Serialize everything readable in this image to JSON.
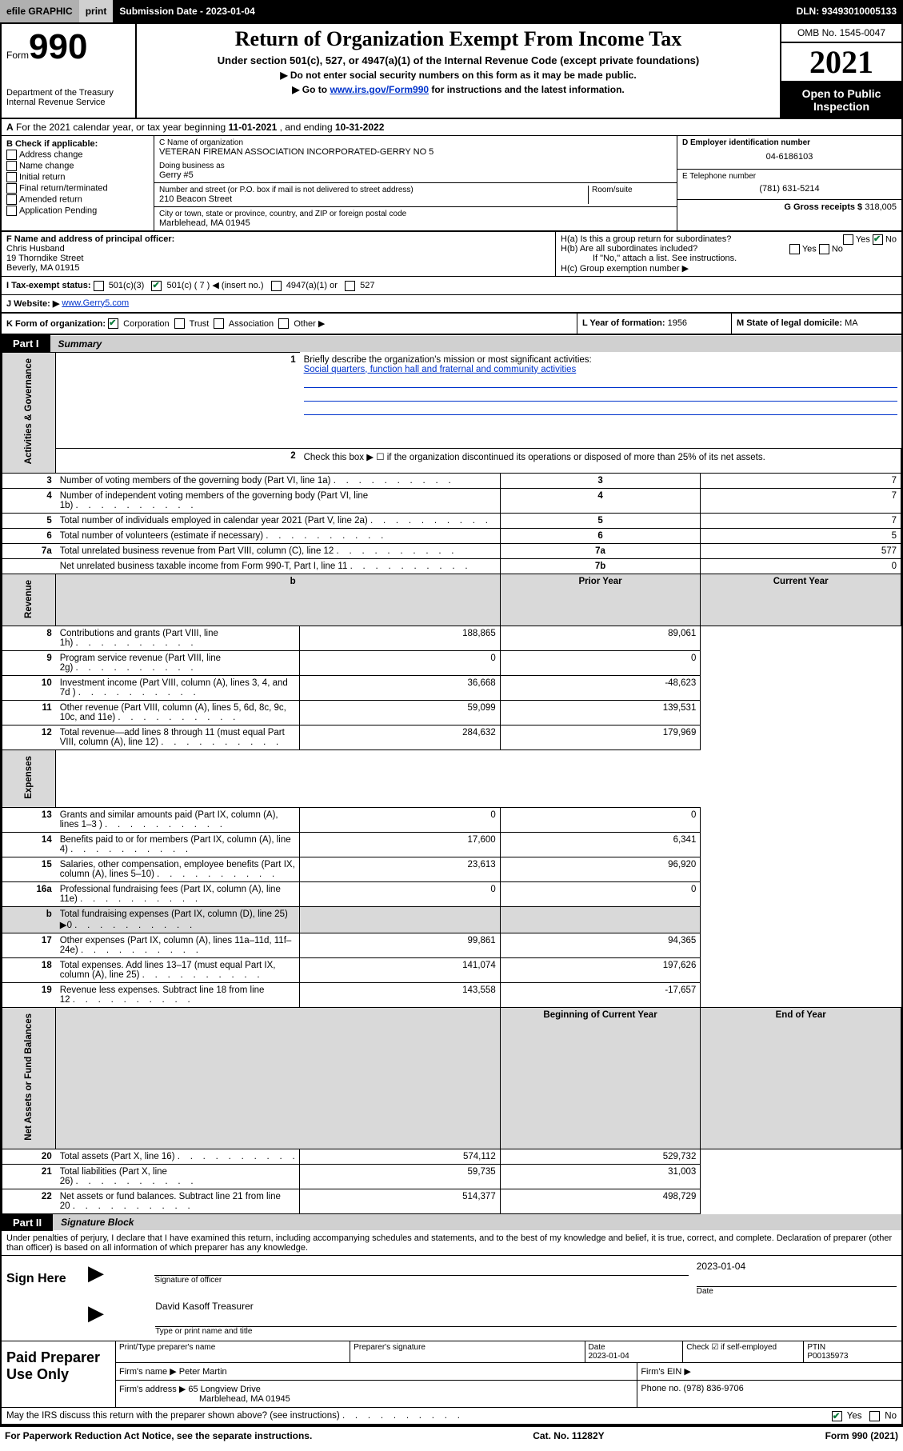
{
  "topbar": {
    "efile": "efile GRAPHIC",
    "print": "print",
    "submission": "Submission Date - 2023-01-04",
    "dln": "DLN: 93493010005133"
  },
  "header": {
    "form_word": "Form",
    "form_num": "990",
    "dept": "Department of the Treasury\nInternal Revenue Service",
    "title": "Return of Organization Exempt From Income Tax",
    "sub1": "Under section 501(c), 527, or 4947(a)(1) of the Internal Revenue Code (except private foundations)",
    "sub2": "▶ Do not enter social security numbers on this form as it may be made public.",
    "sub3_pre": "▶ Go to ",
    "sub3_link": "www.irs.gov/Form990",
    "sub3_post": " for instructions and the latest information.",
    "omb": "OMB No. 1545-0047",
    "year": "2021",
    "open": "Open to Public Inspection"
  },
  "section_a": {
    "text_pre": "For the 2021 calendar year, or tax year beginning ",
    "begin": "11-01-2021",
    "mid": " , and ending ",
    "end": "10-31-2022"
  },
  "b_checks": {
    "label": "B Check if applicable:",
    "items": [
      "Address change",
      "Name change",
      "Initial return",
      "Final return/terminated",
      "Amended return",
      "Application Pending"
    ]
  },
  "c": {
    "name_label": "C Name of organization",
    "name": "VETERAN FIREMAN ASSOCIATION INCORPORATED-GERRY NO 5",
    "dba_label": "Doing business as",
    "dba": "Gerry #5",
    "street_label": "Number and street (or P.O. box if mail is not delivered to street address)",
    "room_label": "Room/suite",
    "street": "210 Beacon Street",
    "city_label": "City or town, state or province, country, and ZIP or foreign postal code",
    "city": "Marblehead, MA  01945"
  },
  "d": {
    "label": "D Employer identification number",
    "value": "04-6186103"
  },
  "e": {
    "label": "E Telephone number",
    "value": "(781) 631-5214"
  },
  "g": {
    "label": "G Gross receipts $",
    "value": "318,005"
  },
  "f": {
    "label": "F Name and address of principal officer:",
    "name": "Chris Husband",
    "street": "19 Thorndike Street",
    "city": "Beverly, MA  01915"
  },
  "h": {
    "a": "H(a)  Is this a group return for subordinates?",
    "b": "H(b)  Are all subordinates included?",
    "b_note": "If \"No,\" attach a list. See instructions.",
    "c": "H(c)  Group exemption number ▶",
    "yes": "Yes",
    "no": "No"
  },
  "i": {
    "label": "I    Tax-exempt status:",
    "opts": [
      "501(c)(3)",
      "501(c) ( 7 ) ◀ (insert no.)",
      "4947(a)(1) or",
      "527"
    ]
  },
  "j": {
    "label": "J    Website: ▶",
    "value": "www.Gerry5.com"
  },
  "k": {
    "label": "K Form of organization:",
    "opts": [
      "Corporation",
      "Trust",
      "Association",
      "Other ▶"
    ]
  },
  "l": {
    "label": "L Year of formation:",
    "value": "1956"
  },
  "m": {
    "label": "M State of legal domicile:",
    "value": "MA"
  },
  "part1": {
    "label": "Part I",
    "title": "Summary"
  },
  "summary": {
    "q1": "Briefly describe the organization's mission or most significant activities:",
    "mission": "Social quarters, function hall and fraternal and community activities",
    "q2": "Check this box ▶ ☐  if the organization discontinued its operations or disposed of more than 25% of its net assets.",
    "rows_gov": [
      {
        "n": "3",
        "t": "Number of voting members of the governing body (Part VI, line 1a)",
        "box": "3",
        "v": "7"
      },
      {
        "n": "4",
        "t": "Number of independent voting members of the governing body (Part VI, line 1b)",
        "box": "4",
        "v": "7"
      },
      {
        "n": "5",
        "t": "Total number of individuals employed in calendar year 2021 (Part V, line 2a)",
        "box": "5",
        "v": "7"
      },
      {
        "n": "6",
        "t": "Total number of volunteers (estimate if necessary)",
        "box": "6",
        "v": "5"
      },
      {
        "n": "7a",
        "t": "Total unrelated business revenue from Part VIII, column (C), line 12",
        "box": "7a",
        "v": "577"
      },
      {
        "n": "",
        "t": "Net unrelated business taxable income from Form 990-T, Part I, line 11",
        "box": "7b",
        "v": "0"
      }
    ],
    "col_prior": "Prior Year",
    "col_current": "Current Year",
    "rev": [
      {
        "n": "8",
        "t": "Contributions and grants (Part VIII, line 1h)",
        "p": "188,865",
        "c": "89,061"
      },
      {
        "n": "9",
        "t": "Program service revenue (Part VIII, line 2g)",
        "p": "0",
        "c": "0"
      },
      {
        "n": "10",
        "t": "Investment income (Part VIII, column (A), lines 3, 4, and 7d )",
        "p": "36,668",
        "c": "-48,623"
      },
      {
        "n": "11",
        "t": "Other revenue (Part VIII, column (A), lines 5, 6d, 8c, 9c, 10c, and 11e)",
        "p": "59,099",
        "c": "139,531"
      },
      {
        "n": "12",
        "t": "Total revenue—add lines 8 through 11 (must equal Part VIII, column (A), line 12)",
        "p": "284,632",
        "c": "179,969"
      }
    ],
    "exp": [
      {
        "n": "13",
        "t": "Grants and similar amounts paid (Part IX, column (A), lines 1–3 )",
        "p": "0",
        "c": "0"
      },
      {
        "n": "14",
        "t": "Benefits paid to or for members (Part IX, column (A), line 4)",
        "p": "17,600",
        "c": "6,341"
      },
      {
        "n": "15",
        "t": "Salaries, other compensation, employee benefits (Part IX, column (A), lines 5–10)",
        "p": "23,613",
        "c": "96,920"
      },
      {
        "n": "16a",
        "t": "Professional fundraising fees (Part IX, column (A), line 11e)",
        "p": "0",
        "c": "0"
      },
      {
        "n": "b",
        "t": "Total fundraising expenses (Part IX, column (D), line 25) ▶0",
        "p": "",
        "c": "",
        "shade": true
      },
      {
        "n": "17",
        "t": "Other expenses (Part IX, column (A), lines 11a–11d, 11f–24e)",
        "p": "99,861",
        "c": "94,365"
      },
      {
        "n": "18",
        "t": "Total expenses. Add lines 13–17 (must equal Part IX, column (A), line 25)",
        "p": "141,074",
        "c": "197,626"
      },
      {
        "n": "19",
        "t": "Revenue less expenses. Subtract line 18 from line 12",
        "p": "143,558",
        "c": "-17,657"
      }
    ],
    "col_begin": "Beginning of Current Year",
    "col_end": "End of Year",
    "net": [
      {
        "n": "20",
        "t": "Total assets (Part X, line 16)",
        "p": "574,112",
        "c": "529,732"
      },
      {
        "n": "21",
        "t": "Total liabilities (Part X, line 26)",
        "p": "59,735",
        "c": "31,003"
      },
      {
        "n": "22",
        "t": "Net assets or fund balances. Subtract line 21 from line 20",
        "p": "514,377",
        "c": "498,729"
      }
    ],
    "sidebars": {
      "gov": "Activities & Governance",
      "rev": "Revenue",
      "exp": "Expenses",
      "net": "Net Assets or Fund Balances"
    }
  },
  "part2": {
    "label": "Part II",
    "title": "Signature Block"
  },
  "penalty": "Under penalties of perjury, I declare that I have examined this return, including accompanying schedules and statements, and to the best of my knowledge and belief, it is true, correct, and complete. Declaration of preparer (other than officer) is based on all information of which preparer has any knowledge.",
  "sign": {
    "here": "Sign Here",
    "sig_label": "Signature of officer",
    "date_label": "Date",
    "date": "2023-01-04",
    "name": "David Kasoff  Treasurer",
    "name_label": "Type or print name and title"
  },
  "paid": {
    "title": "Paid Preparer Use Only",
    "h1": "Print/Type preparer's name",
    "h2": "Preparer's signature",
    "h3": "Date",
    "h3v": "2023-01-04",
    "h4": "Check ☑ if self-employed",
    "h5": "PTIN",
    "h5v": "P00135973",
    "firm_label": "Firm's name    ▶",
    "firm": "Peter Martin",
    "ein_label": "Firm's EIN ▶",
    "addr_label": "Firm's address ▶",
    "addr1": "65 Longview Drive",
    "addr2": "Marblehead, MA  01945",
    "phone_label": "Phone no.",
    "phone": "(978) 836-9706"
  },
  "discuss": {
    "q": "May the IRS discuss this return with the preparer shown above? (see instructions)",
    "yes": "Yes",
    "no": "No"
  },
  "footer": {
    "left": "For Paperwork Reduction Act Notice, see the separate instructions.",
    "mid": "Cat. No. 11282Y",
    "right": "Form 990 (2021)"
  }
}
